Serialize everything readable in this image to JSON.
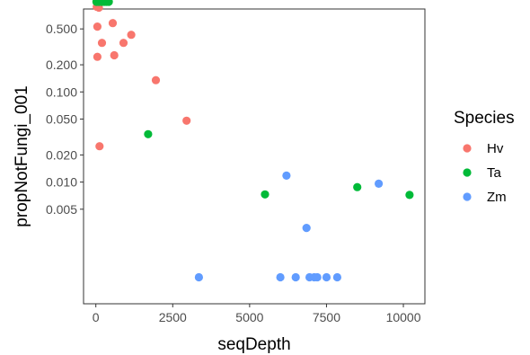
{
  "chart_data": {
    "type": "scatter",
    "xlabel": "seqDepth",
    "ylabel": "propNotFungi_001",
    "xlim": [
      -400,
      10700
    ],
    "ylim_log10": [
      -3.35,
      -0.08
    ],
    "y_scale": "log10",
    "x_ticks": [
      0,
      2500,
      5000,
      7500,
      10000
    ],
    "x_tick_labels": [
      "0",
      "2500",
      "5000",
      "7500",
      "10000"
    ],
    "y_ticks": [
      0.005,
      0.01,
      0.02,
      0.05,
      0.1,
      0.2,
      0.5
    ],
    "y_tick_labels": [
      "0.005",
      "0.010",
      "0.020",
      "0.050",
      "0.100",
      "0.200",
      "0.500"
    ],
    "grid": false,
    "legend": {
      "title": "Species",
      "placement": "right"
    },
    "series": [
      {
        "name": "Hv",
        "color": "#F8766D",
        "points": [
          [
            30,
            0.88
          ],
          [
            100,
            0.86
          ],
          [
            50,
            0.53
          ],
          [
            200,
            0.35
          ],
          [
            50,
            0.245
          ],
          [
            550,
            0.58
          ],
          [
            600,
            0.255
          ],
          [
            900,
            0.35
          ],
          [
            1150,
            0.43
          ],
          [
            1950,
            0.135
          ],
          [
            2950,
            0.048
          ],
          [
            120,
            0.025
          ]
        ]
      },
      {
        "name": "Ta",
        "color": "#00BA38",
        "points": [
          [
            20,
            1.0
          ],
          [
            100,
            1.0
          ],
          [
            200,
            1.0
          ],
          [
            280,
            1.0
          ],
          [
            350,
            1.0
          ],
          [
            420,
            1.0
          ],
          [
            1700,
            0.034
          ],
          [
            5500,
            0.0073
          ],
          [
            8500,
            0.0088
          ],
          [
            10200,
            0.0072
          ]
        ]
      },
      {
        "name": "Zm",
        "color": "#619CFF",
        "points": [
          [
            3350,
            0.00088
          ],
          [
            6200,
            0.0118
          ],
          [
            6850,
            0.0031
          ],
          [
            9200,
            0.0096
          ],
          [
            6000,
            0.00088
          ],
          [
            6500,
            0.00088
          ],
          [
            6950,
            0.00088
          ],
          [
            7100,
            0.00088
          ],
          [
            7200,
            0.00088
          ],
          [
            7500,
            0.00088
          ],
          [
            7850,
            0.00088
          ]
        ]
      }
    ]
  }
}
